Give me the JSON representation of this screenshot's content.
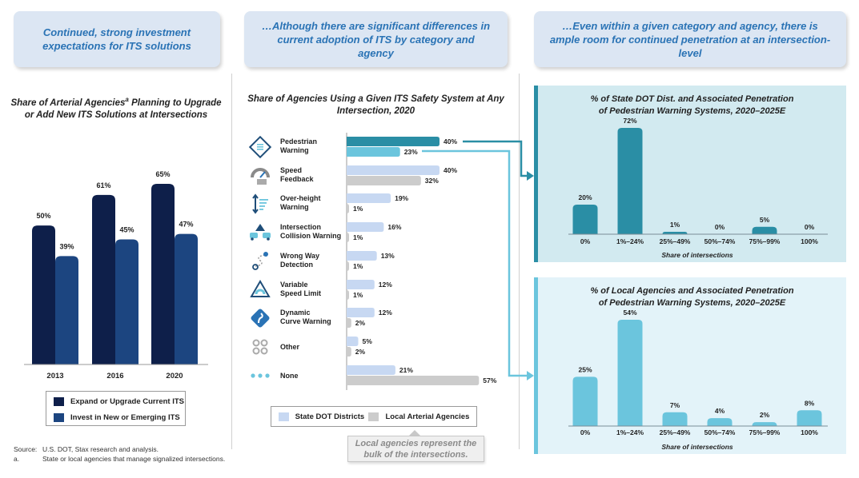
{
  "headers": {
    "left": "Continued, strong investment expectations for ITS solutions",
    "middle": "…Although there are significant differences in current adoption of ITS by category and agency",
    "right": "…Even within a given category and agency, there is ample room for continued penetration at an intersection-level"
  },
  "colors": {
    "navy": "#0e1f4a",
    "blue": "#1c4580",
    "state": "#c7d8f2",
    "local": "#cccccc",
    "teal": "#2a8ea5",
    "light_teal": "#6bc5dd"
  },
  "chart_data": [
    {
      "type": "bar",
      "title": "Share of Arterial Agencies",
      "title_sup": "a",
      "title_rest": " Planning to Upgrade or Add New ITS Solutions at Intersections",
      "categories": [
        "2013",
        "2016",
        "2020"
      ],
      "series": [
        {
          "name": "Expand or Upgrade Current ITS",
          "values": [
            50,
            61,
            65
          ],
          "labels": [
            "50%",
            "61%",
            "65%"
          ]
        },
        {
          "name": "Invest in New or Emerging ITS",
          "values": [
            39,
            45,
            47
          ],
          "labels": [
            "39%",
            "45%",
            "47%"
          ]
        }
      ],
      "ylim": [
        0,
        70
      ]
    },
    {
      "type": "bar",
      "orientation": "horizontal",
      "title": "Share of Agencies Using a Given ITS Safety System at Any Intersection, 2020",
      "categories": [
        {
          "line1": "Pedestrian",
          "line2": "Warning",
          "icon": "pedestrian-warning-icon"
        },
        {
          "line1": "Speed",
          "line2": "Feedback",
          "icon": "speed-feedback-icon"
        },
        {
          "line1": "Over-height",
          "line2": "Warning",
          "icon": "over-height-icon"
        },
        {
          "line1": "Intersection",
          "line2": "Collision Warning",
          "icon": "collision-warning-icon"
        },
        {
          "line1": "Wrong Way",
          "line2": "Detection",
          "icon": "wrong-way-icon"
        },
        {
          "line1": "Variable",
          "line2": "Speed Limit",
          "icon": "variable-speed-icon"
        },
        {
          "line1": "Dynamic",
          "line2": "Curve Warning",
          "icon": "curve-warning-icon"
        },
        {
          "line1": "Other",
          "line2": "",
          "icon": "other-icon"
        },
        {
          "line1": "None",
          "line2": "",
          "icon": "none-icon"
        }
      ],
      "series": [
        {
          "name": "State DOT Districts",
          "values": [
            40,
            40,
            19,
            16,
            13,
            12,
            12,
            5,
            21
          ],
          "labels": [
            "40%",
            "40%",
            "19%",
            "16%",
            "13%",
            "12%",
            "12%",
            "5%",
            "21%"
          ]
        },
        {
          "name": "Local Arterial Agencies",
          "values": [
            23,
            32,
            1,
            1,
            1,
            1,
            2,
            2,
            57
          ],
          "labels": [
            "23%",
            "32%",
            "1%",
            "1%",
            "1%",
            "1%",
            "2%",
            "2%",
            "57%"
          ]
        }
      ],
      "xlim": [
        0,
        60
      ],
      "callout": "Local agencies represent the bulk of the intersections."
    },
    {
      "type": "bar",
      "title_line1": "% of State DOT Dist. and Associated Penetration",
      "title_line2": "of Pedestrian Warning Systems, 2020–2025E",
      "categories": [
        "0%",
        "1%–24%",
        "25%–49%",
        "50%–74%",
        "75%–99%",
        "100%"
      ],
      "values": [
        20,
        72,
        1,
        0,
        5,
        0
      ],
      "labels": [
        "20%",
        "72%",
        "1%",
        "0%",
        "5%",
        "0%"
      ],
      "xlabel": "Share of intersections",
      "ylim": [
        0,
        75
      ]
    },
    {
      "type": "bar",
      "title_line1": "% of Local Agencies and Associated Penetration",
      "title_line2": "of Pedestrian Warning Systems, 2020–2025E",
      "categories": [
        "0%",
        "1%–24%",
        "25%–49%",
        "50%–74%",
        "75%–99%",
        "100%"
      ],
      "values": [
        25,
        54,
        7,
        4,
        2,
        8
      ],
      "labels": [
        "25%",
        "54%",
        "7%",
        "4%",
        "2%",
        "8%"
      ],
      "xlabel": "Share of intersections",
      "ylim": [
        0,
        56
      ]
    }
  ],
  "footnote": {
    "source_key": "Source:",
    "source_text": "U.S. DOT, Stax research and analysis.",
    "a_key": "a.",
    "a_text": "State or local agencies that manage signalized intersections."
  }
}
